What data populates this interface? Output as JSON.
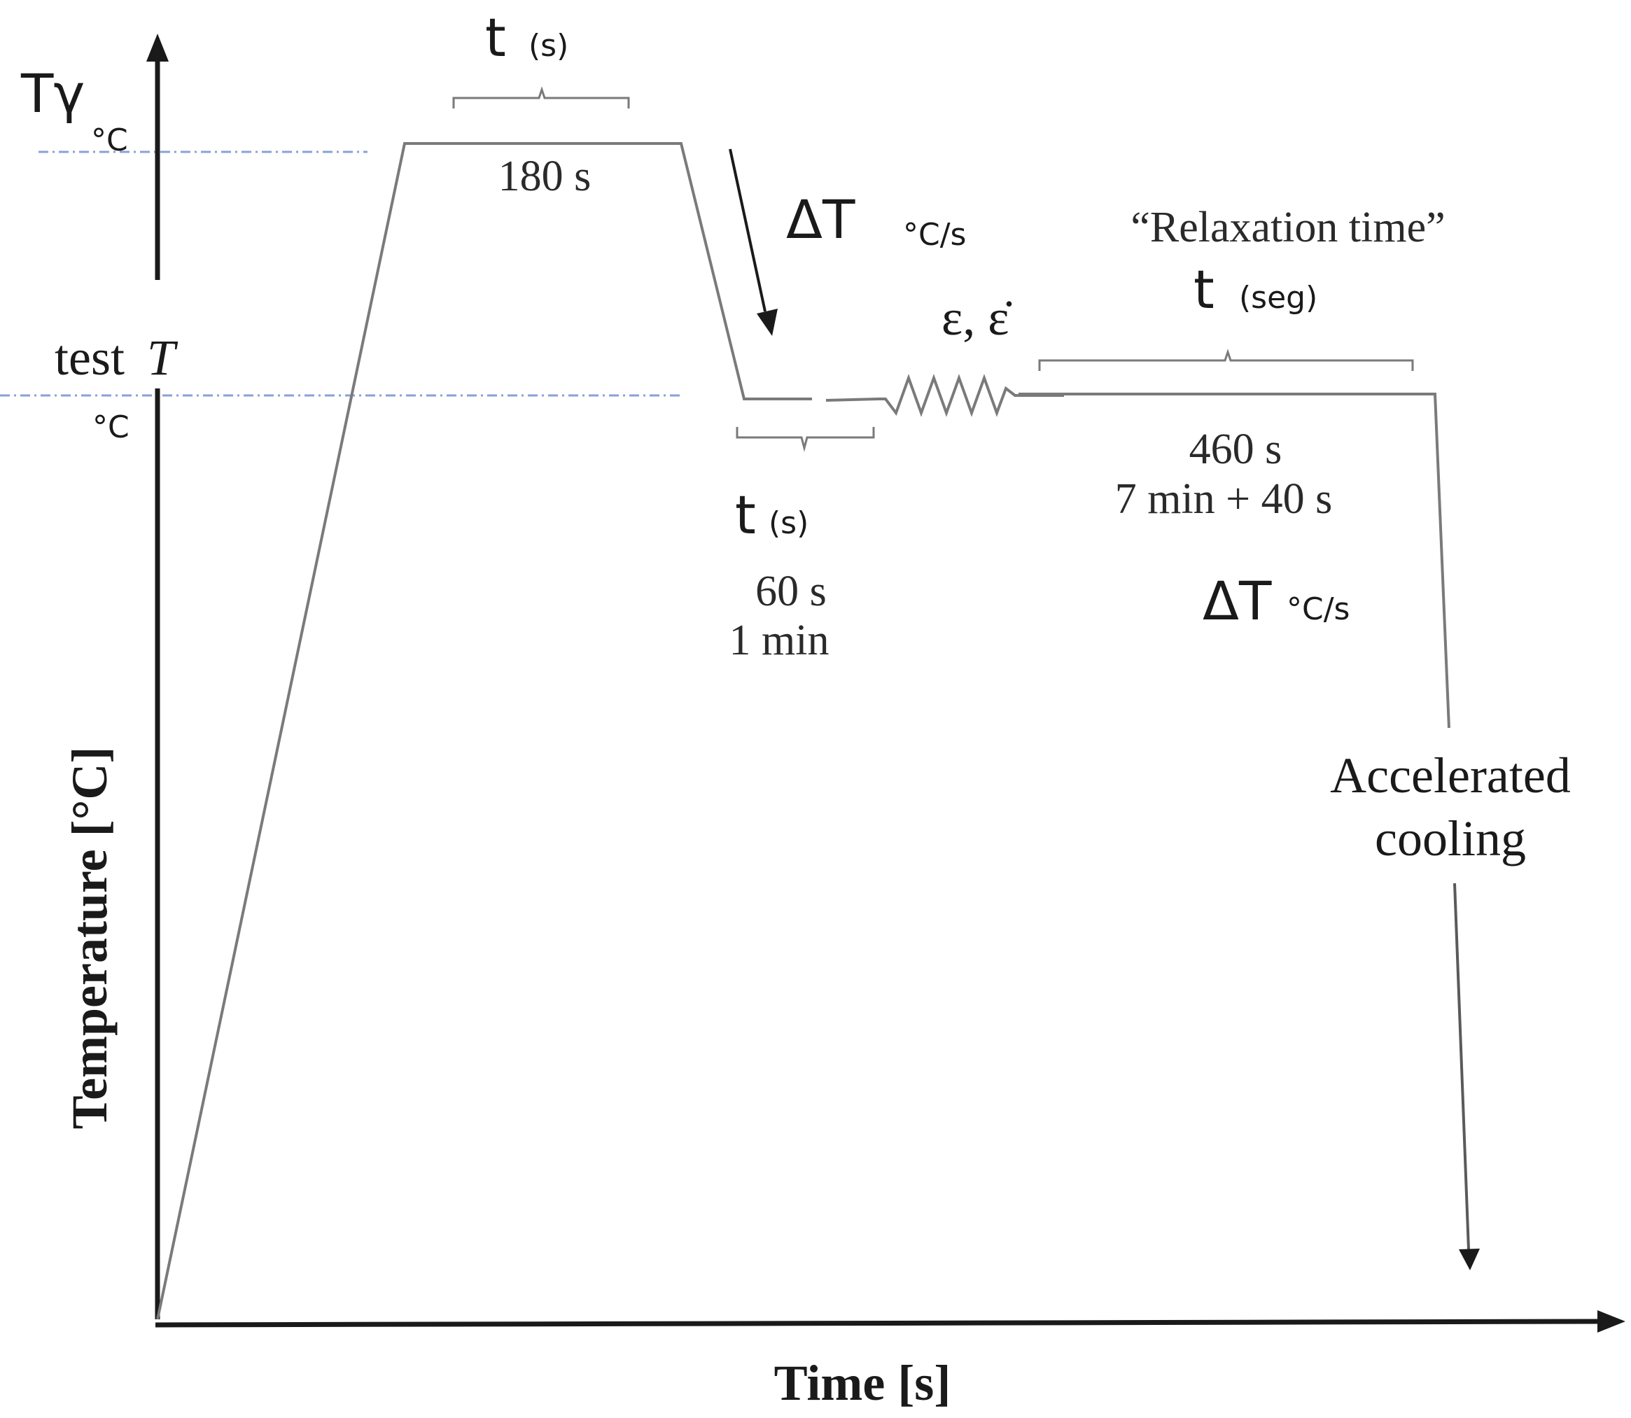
{
  "axes": {
    "y_label": "Temperature [°C]",
    "x_label": "Time [s]"
  },
  "levels": {
    "austenitizing": {
      "symbol": "Tγ",
      "unit": "°C"
    },
    "test": {
      "label": "test",
      "symbol": "T",
      "unit": "°C"
    }
  },
  "steps": {
    "soak": {
      "time_symbol": "t",
      "time_unit": "(s)",
      "duration": "180 s"
    },
    "cooling": {
      "symbol": "ΔT",
      "unit": "°C/s"
    },
    "hold": {
      "time_symbol": "t",
      "time_unit": "(s)",
      "duration_s": "60 s",
      "duration_min": "1 min"
    },
    "deformation": {
      "symbol": "ε, ε̇"
    },
    "relaxation": {
      "title": "“Relaxation time”",
      "time_symbol": "t",
      "time_unit": "(seg)",
      "duration_s": "460 s",
      "duration_min": "7 min + 40 s"
    },
    "final_cooling": {
      "rate_symbol": "ΔT",
      "rate_unit": "°C/s",
      "label_line1": "Accelerated",
      "label_line2": "cooling"
    }
  }
}
